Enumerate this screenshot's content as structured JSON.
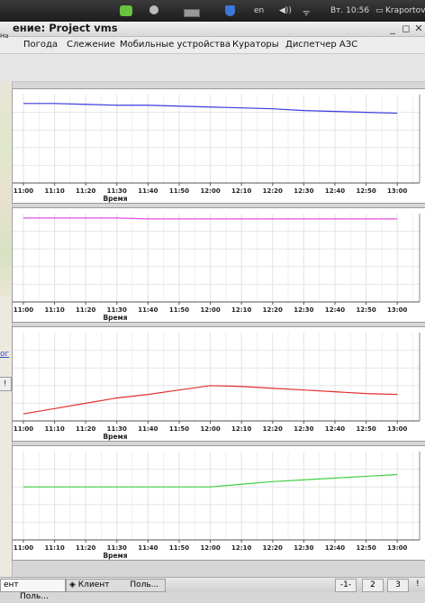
{
  "system_panel": {
    "lang": "en",
    "clock": "Вт. 10:56",
    "user": "Kraportov"
  },
  "window": {
    "title_fragment": "ение: Project vms"
  },
  "menu": [
    "Погода",
    "Слежение",
    "Мобильные устройства",
    "Кураторы",
    "Диспетчер АЗС"
  ],
  "left_fragments": {
    "ha": "Ha",
    "link": "ог",
    "btn": "!"
  },
  "taskbar": {
    "task1": "ент",
    "task2": "Поль...",
    "task3": "Клиент",
    "task4": "Поль...",
    "ws": [
      "-1-",
      "2",
      "3"
    ],
    "end": "!"
  },
  "chart_data": [
    {
      "type": "line",
      "xlabel": "Время",
      "x": [
        "11:00",
        "11:10",
        "11:20",
        "11:30",
        "11:40",
        "11:50",
        "12:00",
        "12:10",
        "12:20",
        "12:30",
        "12:40",
        "12:50",
        "13:00"
      ],
      "series": [
        {
          "color": "#3a3ae0",
          "values": [
            0.9,
            0.9,
            0.89,
            0.88,
            0.88,
            0.87,
            0.86,
            0.85,
            0.84,
            0.82,
            0.81,
            0.8,
            0.79
          ]
        }
      ]
    },
    {
      "type": "line",
      "xlabel": "Время",
      "x": [
        "11:00",
        "11:10",
        "11:20",
        "11:30",
        "11:40",
        "11:50",
        "12:00",
        "12:10",
        "12:20",
        "12:30",
        "12:40",
        "12:50",
        "13:00"
      ],
      "series": [
        {
          "color": "#e050e0",
          "values": [
            0.95,
            0.95,
            0.95,
            0.95,
            0.94,
            0.94,
            0.94,
            0.94,
            0.94,
            0.94,
            0.94,
            0.94,
            0.94
          ]
        }
      ]
    },
    {
      "type": "line",
      "xlabel": "Время",
      "x": [
        "11:00",
        "11:10",
        "11:20",
        "11:30",
        "11:40",
        "11:50",
        "12:00",
        "12:10",
        "12:20",
        "12:30",
        "12:40",
        "12:50",
        "13:00"
      ],
      "series": [
        {
          "color": "#e03030",
          "values": [
            0.08,
            0.14,
            0.2,
            0.26,
            0.3,
            0.35,
            0.4,
            0.39,
            0.37,
            0.35,
            0.33,
            0.31,
            0.3
          ]
        }
      ]
    },
    {
      "type": "line",
      "xlabel": "Время",
      "x": [
        "11:00",
        "11:10",
        "11:20",
        "11:30",
        "11:40",
        "11:50",
        "12:00",
        "12:10",
        "12:20",
        "12:30",
        "12:40",
        "12:50",
        "13:00"
      ],
      "series": [
        {
          "color": "#40d040",
          "values": [
            0.6,
            0.6,
            0.6,
            0.6,
            0.6,
            0.6,
            0.6,
            0.63,
            0.66,
            0.68,
            0.7,
            0.72,
            0.74
          ]
        }
      ]
    }
  ]
}
